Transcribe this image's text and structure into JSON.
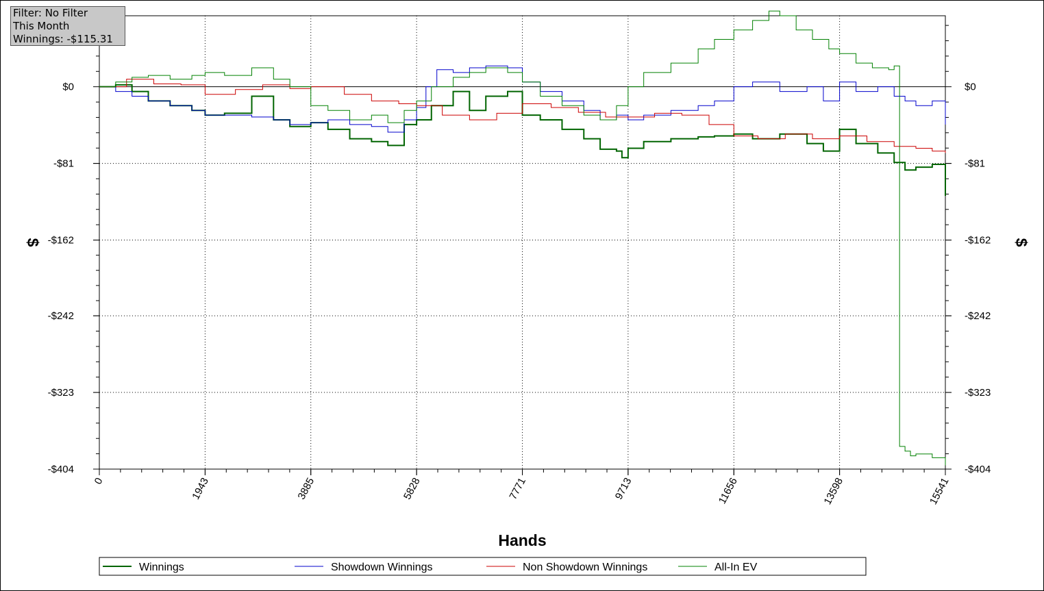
{
  "info_box": {
    "filter": "Filter: No Filter",
    "period": "This Month",
    "winnings": "Winnings: -$115.31"
  },
  "chart_data": {
    "type": "line",
    "xlabel": "Hands",
    "ylabel": "$",
    "xlim": [
      0,
      15541
    ],
    "ylim": [
      -404,
      75
    ],
    "x_ticks": [
      0,
      1943,
      3885,
      5828,
      7771,
      9713,
      11656,
      13598,
      15541
    ],
    "x_tick_labels": [
      "0",
      "1943",
      "3885",
      "5828",
      "7771",
      "9713",
      "11656",
      "13598",
      "15541"
    ],
    "y_ticks": [
      0,
      -81,
      -162,
      -242,
      -323,
      -404
    ],
    "y_tick_labels": [
      "$0",
      "-$81",
      "-$162",
      "-$242",
      "-$323",
      "-$404"
    ],
    "grid": true,
    "legend_position": "bottom",
    "series": [
      {
        "name": "Winnings",
        "color": "#006400",
        "x": [
          0,
          300,
          600,
          900,
          1300,
          1700,
          1943,
          2300,
          2800,
          3200,
          3500,
          3885,
          4200,
          4600,
          5000,
          5300,
          5600,
          5828,
          6100,
          6500,
          6800,
          7100,
          7500,
          7771,
          8100,
          8500,
          8900,
          9200,
          9500,
          9600,
          9713,
          10000,
          10500,
          11000,
          11300,
          11656,
          12000,
          12500,
          13000,
          13300,
          13598,
          13900,
          14300,
          14600,
          14800,
          15000,
          15300,
          15541
        ],
        "values": [
          0,
          2,
          -5,
          -15,
          -20,
          -25,
          -30,
          -28,
          -10,
          -35,
          -42,
          -38,
          -45,
          -55,
          -58,
          -62,
          -40,
          -35,
          -20,
          -5,
          -25,
          -10,
          -5,
          -30,
          -35,
          -45,
          -55,
          -66,
          -68,
          -75,
          -65,
          -58,
          -55,
          -53,
          -52,
          -50,
          -55,
          -50,
          -60,
          -68,
          -45,
          -60,
          -70,
          -80,
          -88,
          -85,
          -82,
          -115.31
        ]
      },
      {
        "name": "Showdown Winnings",
        "color": "#0000cc",
        "x": [
          0,
          300,
          600,
          900,
          1300,
          1700,
          1943,
          2300,
          2800,
          3200,
          3500,
          3885,
          4200,
          4600,
          5000,
          5300,
          5600,
          5828,
          6000,
          6200,
          6500,
          6800,
          7100,
          7500,
          7771,
          8100,
          8500,
          8900,
          9200,
          9500,
          9713,
          10000,
          10500,
          11000,
          11300,
          11656,
          12000,
          12500,
          13000,
          13300,
          13598,
          13900,
          14300,
          14600,
          14800,
          15000,
          15300,
          15541
        ],
        "values": [
          0,
          -5,
          -10,
          -15,
          -20,
          -25,
          -30,
          -30,
          -32,
          -35,
          -40,
          -38,
          -35,
          -40,
          -42,
          -48,
          -35,
          -22,
          0,
          18,
          15,
          20,
          22,
          20,
          5,
          -5,
          -15,
          -25,
          -35,
          -30,
          -35,
          -30,
          -25,
          -20,
          -15,
          0,
          5,
          -5,
          0,
          -15,
          5,
          -5,
          0,
          -10,
          -15,
          -20,
          -15,
          -40
        ]
      },
      {
        "name": "Non Showdown Winnings",
        "color": "#cc0000",
        "x": [
          0,
          500,
          1000,
          1500,
          1943,
          2500,
          3000,
          3500,
          3885,
          4500,
          5000,
          5500,
          5828,
          6300,
          6800,
          7300,
          7771,
          8300,
          8800,
          9300,
          9713,
          10200,
          10700,
          11200,
          11656,
          12100,
          12600,
          13100,
          13598,
          14100,
          14600,
          15000,
          15300,
          15541
        ],
        "values": [
          0,
          8,
          3,
          2,
          -8,
          -3,
          2,
          -2,
          0,
          -8,
          -15,
          -18,
          -20,
          -30,
          -35,
          -28,
          -18,
          -22,
          -27,
          -32,
          -32,
          -28,
          -30,
          -40,
          -52,
          -55,
          -50,
          -55,
          -52,
          -58,
          -63,
          -65,
          -68,
          -70
        ]
      },
      {
        "name": "All-In EV",
        "color": "#008000",
        "x": [
          0,
          300,
          600,
          900,
          1300,
          1700,
          1943,
          2300,
          2800,
          3200,
          3500,
          3885,
          4200,
          4600,
          5000,
          5300,
          5600,
          5828,
          6100,
          6500,
          6800,
          7100,
          7500,
          7771,
          8100,
          8500,
          8900,
          9200,
          9500,
          9713,
          10000,
          10500,
          11000,
          11300,
          11656,
          12000,
          12300,
          12500,
          12800,
          13100,
          13400,
          13598,
          13900,
          14200,
          14500,
          14600,
          14700,
          14800,
          14900,
          15000,
          15300,
          15541
        ],
        "values": [
          0,
          5,
          10,
          12,
          8,
          12,
          15,
          12,
          20,
          8,
          0,
          -20,
          -25,
          -35,
          -30,
          -38,
          -25,
          -15,
          0,
          10,
          15,
          20,
          15,
          5,
          -10,
          -20,
          -30,
          -35,
          -20,
          0,
          15,
          25,
          40,
          50,
          60,
          70,
          80,
          75,
          60,
          50,
          40,
          35,
          25,
          20,
          18,
          22,
          -380,
          -385,
          -390,
          -388,
          -392,
          -400
        ]
      }
    ]
  }
}
